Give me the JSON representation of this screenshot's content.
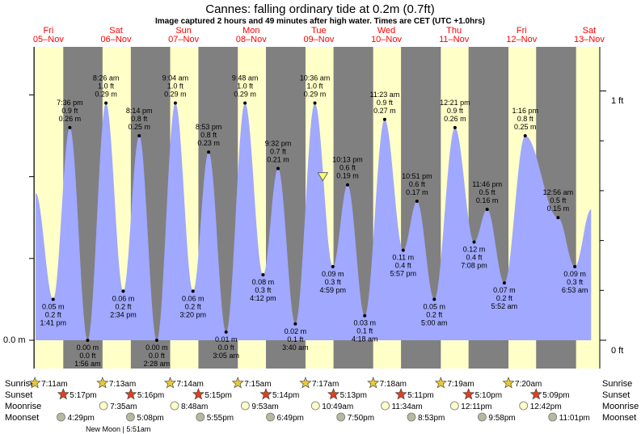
{
  "chart_data": {
    "type": "area",
    "title": "Cannes: falling  ordinary tide at 0.2m (0.7ft)",
    "subtitle": "Image captured 2 hours and 49 minutes after high water. Times are CET (UTC +1.0hrs)",
    "days": [
      {
        "name": "Fri",
        "date": "05–Nov"
      },
      {
        "name": "Sat",
        "date": "06–Nov"
      },
      {
        "name": "Sun",
        "date": "07–Nov"
      },
      {
        "name": "Mon",
        "date": "08–Nov"
      },
      {
        "name": "Tue",
        "date": "09–Nov"
      },
      {
        "name": "Wed",
        "date": "10–Nov"
      },
      {
        "name": "Thu",
        "date": "11–Nov"
      },
      {
        "name": "Fri",
        "date": "12–Nov"
      },
      {
        "name": "Sat",
        "date": "13–Nov"
      }
    ],
    "y_axis_left": {
      "labels": [
        {
          "text": "0.0 m",
          "value": 0.0
        }
      ]
    },
    "y_axis_right": {
      "labels": [
        {
          "text": "1 ft",
          "value": 0.3048
        },
        {
          "text": "0 ft",
          "value": 0.0
        }
      ]
    },
    "ylim": [
      -0.04,
      0.365
    ],
    "tides": [
      {
        "time": "1:41 pm",
        "h": 0.05,
        "ft": "0.2 ft",
        "m": "0.05 m",
        "type": "low"
      },
      {
        "time": "7:36 pm",
        "h": 0.26,
        "ft": "0.9 ft",
        "m": "0.26 m",
        "type": "high"
      },
      {
        "time": "1:56 am",
        "h": 0.0,
        "ft": "0.0 ft",
        "m": "0.00 m",
        "type": "low"
      },
      {
        "time": "8:26 am",
        "h": 0.29,
        "ft": "1.0 ft",
        "m": "0.29 m",
        "type": "high"
      },
      {
        "time": "2:34 pm",
        "h": 0.06,
        "ft": "0.2 ft",
        "m": "0.06 m",
        "type": "low"
      },
      {
        "time": "8:14 pm",
        "h": 0.25,
        "ft": "0.8 ft",
        "m": "0.25 m",
        "type": "high"
      },
      {
        "time": "2:28 am",
        "h": 0.0,
        "ft": "0.0 ft",
        "m": "0.00 m",
        "type": "low"
      },
      {
        "time": "9:04 am",
        "h": 0.29,
        "ft": "1.0 ft",
        "m": "0.29 m",
        "type": "high"
      },
      {
        "time": "3:20 pm",
        "h": 0.06,
        "ft": "0.2 ft",
        "m": "0.06 m",
        "type": "low"
      },
      {
        "time": "8:53 pm",
        "h": 0.23,
        "ft": "0.8 ft",
        "m": "0.23 m",
        "type": "high"
      },
      {
        "time": "3:05 am",
        "h": 0.01,
        "ft": "0.0 ft",
        "m": "0.01 m",
        "type": "low"
      },
      {
        "time": "9:48 am",
        "h": 0.29,
        "ft": "1.0 ft",
        "m": "0.29 m",
        "type": "high"
      },
      {
        "time": "4:12 pm",
        "h": 0.08,
        "ft": "0.3 ft",
        "m": "0.08 m",
        "type": "low"
      },
      {
        "time": "9:32 pm",
        "h": 0.21,
        "ft": "0.7 ft",
        "m": "0.21 m",
        "type": "high"
      },
      {
        "time": "3:40 am",
        "h": 0.02,
        "ft": "0.1 ft",
        "m": "0.02 m",
        "type": "low"
      },
      {
        "time": "10:36 am",
        "h": 0.29,
        "ft": "1.0 ft",
        "m": "0.29 m",
        "type": "high"
      },
      {
        "time": "4:59 pm",
        "h": 0.09,
        "ft": "0.3 ft",
        "m": "0.09 m",
        "type": "low"
      },
      {
        "time": "10:13 pm",
        "h": 0.19,
        "ft": "0.6 ft",
        "m": "0.19 m",
        "type": "high"
      },
      {
        "time": "4:18 am",
        "h": 0.03,
        "ft": "0.1 ft",
        "m": "0.03 m",
        "type": "low"
      },
      {
        "time": "11:23 am",
        "h": 0.27,
        "ft": "0.9 ft",
        "m": "0.27 m",
        "type": "high"
      },
      {
        "time": "5:57 pm",
        "h": 0.11,
        "ft": "0.4 ft",
        "m": "0.11 m",
        "type": "low"
      },
      {
        "time": "10:51 pm",
        "h": 0.17,
        "ft": "0.6 ft",
        "m": "0.17 m",
        "type": "high"
      },
      {
        "time": "5:00 am",
        "h": 0.05,
        "ft": "0.2 ft",
        "m": "0.05 m",
        "type": "low"
      },
      {
        "time": "12:21 pm",
        "h": 0.26,
        "ft": "0.9 ft",
        "m": "0.26 m",
        "type": "high"
      },
      {
        "time": "7:08 pm",
        "h": 0.12,
        "ft": "0.4 ft",
        "m": "0.12 m",
        "type": "low"
      },
      {
        "time": "11:46 pm",
        "h": 0.16,
        "ft": "0.5 ft",
        "m": "0.16 m",
        "type": "high"
      },
      {
        "time": "5:52 am",
        "h": 0.07,
        "ft": "0.2 ft",
        "m": "0.07 m",
        "type": "low"
      },
      {
        "time": "1:16 pm",
        "h": 0.25,
        "ft": "0.8 ft",
        "m": "0.25 m",
        "type": "high"
      },
      {
        "time": "12:56 am",
        "h": 0.15,
        "ft": "0.5 ft",
        "m": "0.15 m",
        "type": "high"
      },
      {
        "time": "6:53 am",
        "h": 0.09,
        "ft": "0.3 ft",
        "m": "0.09 m",
        "type": "low"
      }
    ],
    "current_level_m": 0.2,
    "colors": {
      "night": "#808080",
      "day": "#ffffc8",
      "water": "#a0a8ff",
      "day_label": "#ff0000",
      "marker_fill": "#ffff66"
    }
  },
  "almanac": {
    "row_labels": {
      "sunrise": "Sunrise",
      "sunset": "Sunset",
      "moonrise": "Moonrise",
      "moonset": "Moonset"
    },
    "sunrise": [
      "7:11am",
      "7:13am",
      "7:14am",
      "7:15am",
      "7:17am",
      "7:18am",
      "7:19am",
      "7:20am"
    ],
    "sunset": [
      "5:17pm",
      "5:16pm",
      "5:15pm",
      "5:14pm",
      "5:13pm",
      "5:11pm",
      "5:10pm",
      "5:09pm"
    ],
    "moonrise": [
      "7:35am",
      "8:48am",
      "9:53am",
      "10:49am",
      "11:34am",
      "12:11pm",
      "12:42pm"
    ],
    "moonset": [
      "4:29pm",
      "5:08pm",
      "5:55pm",
      "6:49pm",
      "7:50pm",
      "8:53pm",
      "9:58pm",
      "11:01pm"
    ],
    "new_moon": "New Moon | 5:51am"
  }
}
